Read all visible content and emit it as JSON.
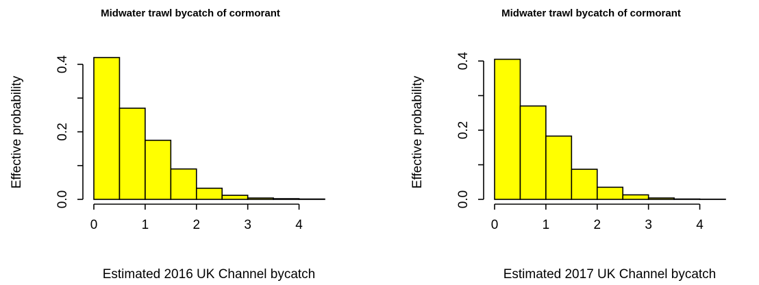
{
  "chart_data": [
    {
      "type": "bar",
      "title": "Midwater trawl bycatch of cormorant",
      "xlabel": "Estimated 2016 UK Channel bycatch",
      "ylabel": "Effective probability",
      "bin_edges": [
        0,
        0.5,
        1,
        1.5,
        2,
        2.5,
        3,
        3.5,
        4,
        4.5
      ],
      "values": [
        0.42,
        0.27,
        0.175,
        0.09,
        0.033,
        0.012,
        0.004,
        0.002,
        0.001
      ],
      "xlim": [
        0,
        4.5
      ],
      "ylim": [
        0,
        0.42
      ],
      "x_ticks": [
        "0",
        "1",
        "2",
        "3",
        "4"
      ],
      "x_tick_values": [
        0,
        1,
        2,
        3,
        4
      ],
      "y_ticks": [
        "0.0",
        "0.2",
        "0.4"
      ],
      "y_tick_values": [
        0,
        0.2,
        0.4
      ],
      "y_minor_ticks": [
        0.1,
        0.3
      ],
      "bar_color": "#ffff00",
      "grid": false,
      "legend": "none"
    },
    {
      "type": "bar",
      "title": "Midwater trawl bycatch of cormorant",
      "xlabel": "Estimated 2017 UK Channel bycatch",
      "ylabel": "Effective probability",
      "bin_edges": [
        0,
        0.5,
        1,
        1.5,
        2,
        2.5,
        3,
        3.5,
        4,
        4.5
      ],
      "values": [
        0.405,
        0.27,
        0.183,
        0.087,
        0.035,
        0.013,
        0.004,
        0.001,
        0.0005
      ],
      "xlim": [
        0,
        4.5
      ],
      "ylim": [
        0,
        0.41
      ],
      "x_ticks": [
        "0",
        "1",
        "2",
        "3",
        "4"
      ],
      "x_tick_values": [
        0,
        1,
        2,
        3,
        4
      ],
      "y_ticks": [
        "0.0",
        "0.2",
        "0.4"
      ],
      "y_tick_values": [
        0,
        0.2,
        0.4
      ],
      "y_minor_ticks": [
        0.1,
        0.3
      ],
      "bar_color": "#ffff00",
      "grid": false,
      "legend": "none"
    }
  ]
}
